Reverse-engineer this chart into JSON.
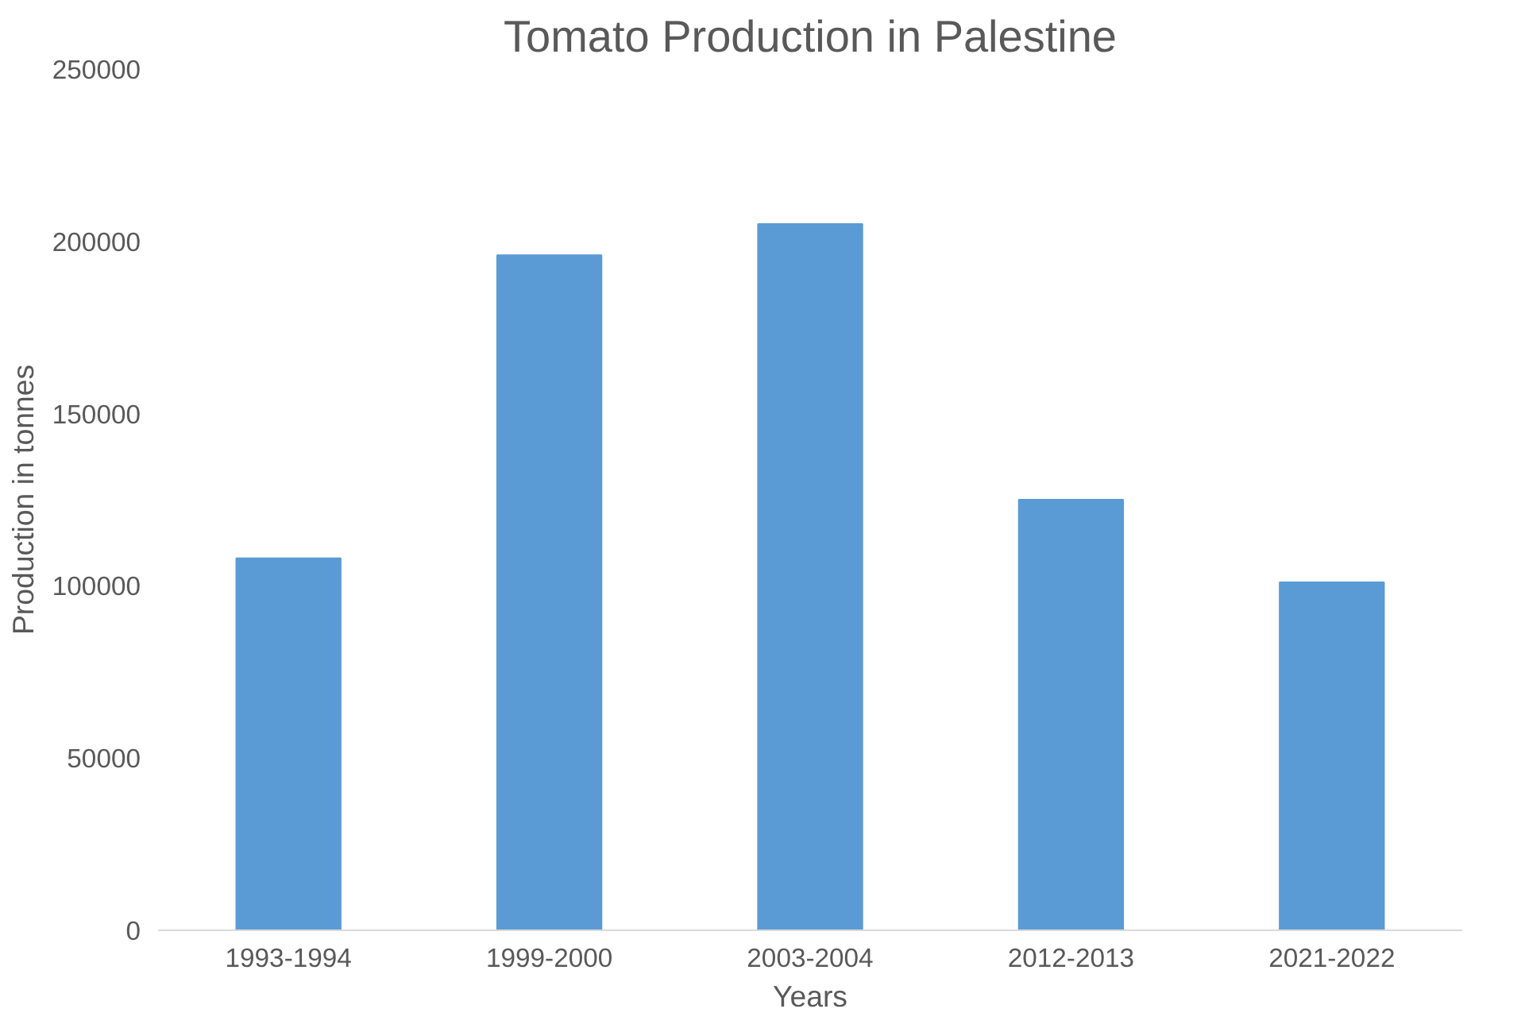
{
  "chart_data": {
    "type": "bar",
    "title": "Tomato Production in Palestine",
    "xlabel": "Years",
    "ylabel": "Production in tonnes",
    "categories": [
      "1993-1994",
      "1999-2000",
      "2003-2004",
      "2012-2013",
      "2021-2022"
    ],
    "values": [
      108000,
      196000,
      205000,
      125000,
      101000
    ],
    "color": "#5b9bd5",
    "ylim": [
      0,
      250000
    ],
    "yticks": [
      0,
      50000,
      100000,
      150000,
      200000,
      250000
    ],
    "grid": false
  }
}
